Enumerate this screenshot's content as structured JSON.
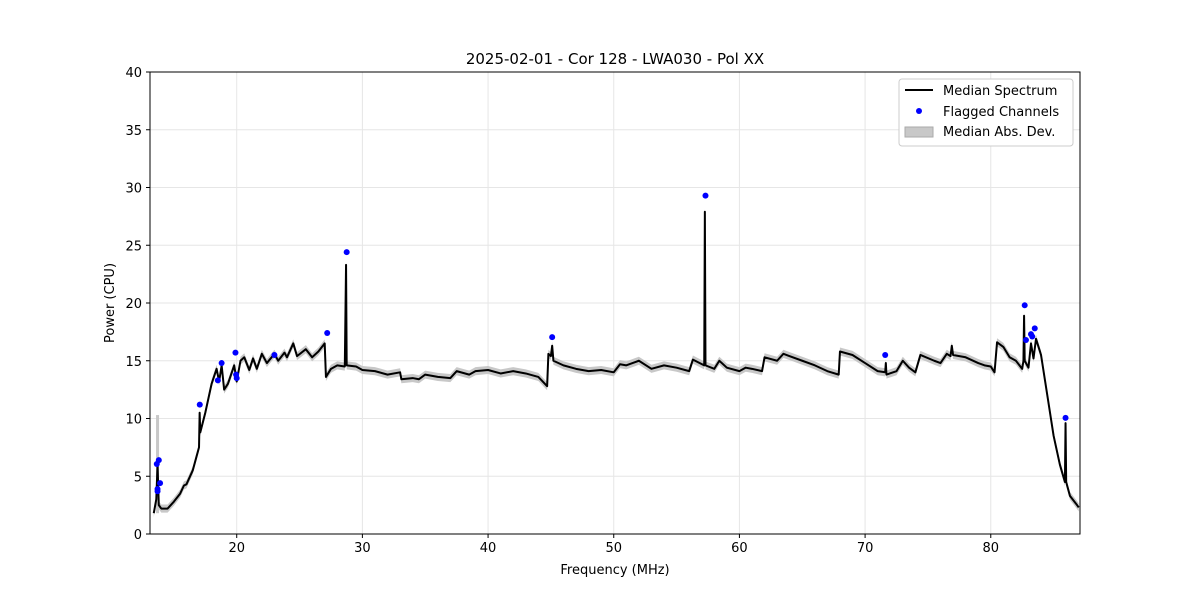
{
  "chart_data": {
    "type": "line",
    "title": "2025-02-01 - Cor 128 - LWA030 - Pol XX",
    "xlabel": "Frequency (MHz)",
    "ylabel": "Power (CPU)",
    "xlim": [
      13.1,
      87.1
    ],
    "ylim": [
      0,
      40
    ],
    "xticks": [
      20,
      30,
      40,
      50,
      60,
      70,
      80
    ],
    "yticks": [
      0,
      5,
      10,
      15,
      20,
      25,
      30,
      35,
      40
    ],
    "grid": true,
    "legend_position": "top-right",
    "legend": [
      "Median Spectrum",
      "Flagged Channels",
      "Median Abs. Dev."
    ],
    "colors": {
      "median": "#000000",
      "flagged": "#0000ff",
      "mad": "#c8c8c8"
    },
    "mad_width": 0.35,
    "mad_spike": {
      "x": 13.7,
      "low": 1.8,
      "high": 10.3
    },
    "median_spectrum": [
      [
        13.4,
        1.8
      ],
      [
        13.6,
        3
      ],
      [
        13.7,
        6
      ],
      [
        13.8,
        2.5
      ],
      [
        14,
        2.2
      ],
      [
        14.5,
        2.2
      ],
      [
        15,
        2.8
      ],
      [
        15.5,
        3.5
      ],
      [
        15.8,
        4.2
      ],
      [
        16,
        4.3
      ],
      [
        16.5,
        5.5
      ],
      [
        17,
        7.5
      ],
      [
        17.05,
        10.5
      ],
      [
        17.1,
        8.8
      ],
      [
        17.5,
        10.5
      ],
      [
        18,
        13
      ],
      [
        18.4,
        14.3
      ],
      [
        18.6,
        13.2
      ],
      [
        18.8,
        14.6
      ],
      [
        19,
        12.5
      ],
      [
        19.3,
        13
      ],
      [
        19.8,
        14.6
      ],
      [
        20,
        13.2
      ],
      [
        20.3,
        15
      ],
      [
        20.6,
        15.3
      ],
      [
        21,
        14.2
      ],
      [
        21.3,
        15.2
      ],
      [
        21.6,
        14.3
      ],
      [
        22,
        15.6
      ],
      [
        22.4,
        14.8
      ],
      [
        23,
        15.6
      ],
      [
        23.3,
        15.0
      ],
      [
        23.8,
        15.7
      ],
      [
        24,
        15.3
      ],
      [
        24.5,
        16.5
      ],
      [
        24.8,
        15.4
      ],
      [
        25.5,
        16
      ],
      [
        26,
        15.3
      ],
      [
        26.5,
        15.8
      ],
      [
        27,
        16.5
      ],
      [
        27.1,
        13.6
      ],
      [
        27.5,
        14.3
      ],
      [
        28,
        14.6
      ],
      [
        28.6,
        14.5
      ],
      [
        28.7,
        23.3
      ],
      [
        28.75,
        14.6
      ],
      [
        29.5,
        14.5
      ],
      [
        30,
        14.2
      ],
      [
        31,
        14.1
      ],
      [
        32,
        13.8
      ],
      [
        33,
        14
      ],
      [
        33.1,
        13.4
      ],
      [
        34,
        13.5
      ],
      [
        34.5,
        13.4
      ],
      [
        35,
        13.8
      ],
      [
        36,
        13.6
      ],
      [
        37,
        13.5
      ],
      [
        37.5,
        14.1
      ],
      [
        38.5,
        13.8
      ],
      [
        39,
        14.1
      ],
      [
        40,
        14.2
      ],
      [
        41,
        13.9
      ],
      [
        42,
        14.1
      ],
      [
        43,
        13.9
      ],
      [
        44,
        13.6
      ],
      [
        44.7,
        12.8
      ],
      [
        44.8,
        15.6
      ],
      [
        45,
        15.4
      ],
      [
        45.1,
        16.3
      ],
      [
        45.2,
        15
      ],
      [
        46,
        14.6
      ],
      [
        47,
        14.3
      ],
      [
        48,
        14.1
      ],
      [
        49,
        14.2
      ],
      [
        50,
        14
      ],
      [
        50.5,
        14.7
      ],
      [
        51,
        14.6
      ],
      [
        52,
        15
      ],
      [
        53,
        14.3
      ],
      [
        54,
        14.6
      ],
      [
        55,
        14.4
      ],
      [
        56,
        14.1
      ],
      [
        56.3,
        15.1
      ],
      [
        57.2,
        14.6
      ],
      [
        57.25,
        27.9
      ],
      [
        57.3,
        14.6
      ],
      [
        58,
        14.3
      ],
      [
        58.4,
        15
      ],
      [
        59,
        14.4
      ],
      [
        60,
        14.1
      ],
      [
        60.5,
        14.4
      ],
      [
        61,
        14.3
      ],
      [
        61.8,
        14.1
      ],
      [
        62,
        15.3
      ],
      [
        63,
        15.0
      ],
      [
        63.5,
        15.6
      ],
      [
        64,
        15.4
      ],
      [
        65,
        15.0
      ],
      [
        66,
        14.6
      ],
      [
        67,
        14.1
      ],
      [
        67.9,
        13.8
      ],
      [
        68,
        15.8
      ],
      [
        69,
        15.5
      ],
      [
        70,
        14.8
      ],
      [
        71,
        14.1
      ],
      [
        71.6,
        14.0
      ],
      [
        71.65,
        14.8
      ],
      [
        71.7,
        13.8
      ],
      [
        72.5,
        14.1
      ],
      [
        73,
        15.0
      ],
      [
        73.5,
        14.4
      ],
      [
        74,
        14.0
      ],
      [
        74.4,
        15.5
      ],
      [
        75.5,
        15.0
      ],
      [
        76,
        14.8
      ],
      [
        76.5,
        15.6
      ],
      [
        76.8,
        15.4
      ],
      [
        76.9,
        16.3
      ],
      [
        77,
        15.5
      ],
      [
        78,
        15.3
      ],
      [
        79,
        14.8
      ],
      [
        79.5,
        14.6
      ],
      [
        80,
        14.5
      ],
      [
        80.3,
        14.0
      ],
      [
        80.5,
        16.6
      ],
      [
        81,
        16.2
      ],
      [
        81.5,
        15.3
      ],
      [
        82,
        15
      ],
      [
        82.5,
        14.3
      ],
      [
        82.6,
        15
      ],
      [
        82.65,
        18.9
      ],
      [
        82.7,
        15
      ],
      [
        83,
        14.4
      ],
      [
        83.2,
        16.5
      ],
      [
        83.4,
        15.2
      ],
      [
        83.6,
        16.9
      ],
      [
        84,
        15.5
      ],
      [
        84.5,
        12
      ],
      [
        85,
        8.5
      ],
      [
        85.5,
        6
      ],
      [
        85.9,
        4.5
      ],
      [
        85.95,
        9.6
      ],
      [
        86,
        4.5
      ],
      [
        86.3,
        3.3
      ],
      [
        86.8,
        2.6
      ],
      [
        87,
        2.3
      ]
    ],
    "flagged_channels": [
      [
        13.64,
        6.06
      ],
      [
        13.8,
        6.4
      ],
      [
        13.7,
        3.9
      ],
      [
        13.7,
        3.7
      ],
      [
        13.9,
        4.4
      ],
      [
        17.06,
        11.2
      ],
      [
        18.5,
        13.3
      ],
      [
        18.8,
        14.8
      ],
      [
        19.9,
        15.7
      ],
      [
        20.0,
        13.5
      ],
      [
        19.95,
        13.8
      ],
      [
        23.0,
        15.5
      ],
      [
        27.2,
        17.4
      ],
      [
        28.75,
        24.4
      ],
      [
        45.1,
        17.05
      ],
      [
        57.3,
        29.3
      ],
      [
        71.6,
        15.5
      ],
      [
        82.7,
        19.8
      ],
      [
        82.8,
        16.8
      ],
      [
        83.2,
        17.3
      ],
      [
        83.3,
        17.1
      ],
      [
        83.5,
        17.8
      ],
      [
        85.95,
        10.05
      ]
    ]
  }
}
